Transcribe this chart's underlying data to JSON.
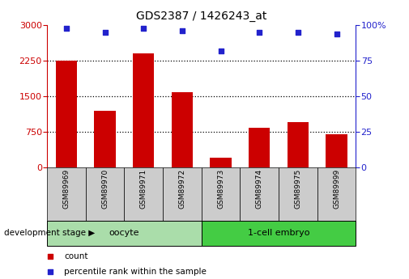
{
  "title": "GDS2387 / 1426243_at",
  "samples": [
    "GSM89969",
    "GSM89970",
    "GSM89971",
    "GSM89972",
    "GSM89973",
    "GSM89974",
    "GSM89975",
    "GSM89999"
  ],
  "counts": [
    2250,
    1200,
    2400,
    1580,
    200,
    830,
    950,
    700
  ],
  "percentiles": [
    98,
    95,
    98,
    96,
    82,
    95,
    95,
    94
  ],
  "ylim_left": [
    0,
    3000
  ],
  "ylim_right": [
    0,
    100
  ],
  "yticks_left": [
    0,
    750,
    1500,
    2250,
    3000
  ],
  "yticks_right": [
    0,
    25,
    50,
    75,
    100
  ],
  "ytick_labels_right": [
    "0",
    "25",
    "50",
    "75",
    "100%"
  ],
  "bar_color": "#cc0000",
  "dot_color": "#2222cc",
  "axis_color_left": "#cc0000",
  "axis_color_right": "#2222cc",
  "groups": [
    {
      "label": "oocyte",
      "indices": [
        0,
        1,
        2,
        3
      ],
      "color": "#aaddaa"
    },
    {
      "label": "1-cell embryo",
      "indices": [
        4,
        5,
        6,
        7
      ],
      "color": "#44cc44"
    }
  ],
  "group_label_prefix": "development stage",
  "x_tick_bg": "#cccccc",
  "legend_count_label": "count",
  "legend_percentile_label": "percentile rank within the sample",
  "grid_yticks": [
    750,
    1500,
    2250
  ]
}
